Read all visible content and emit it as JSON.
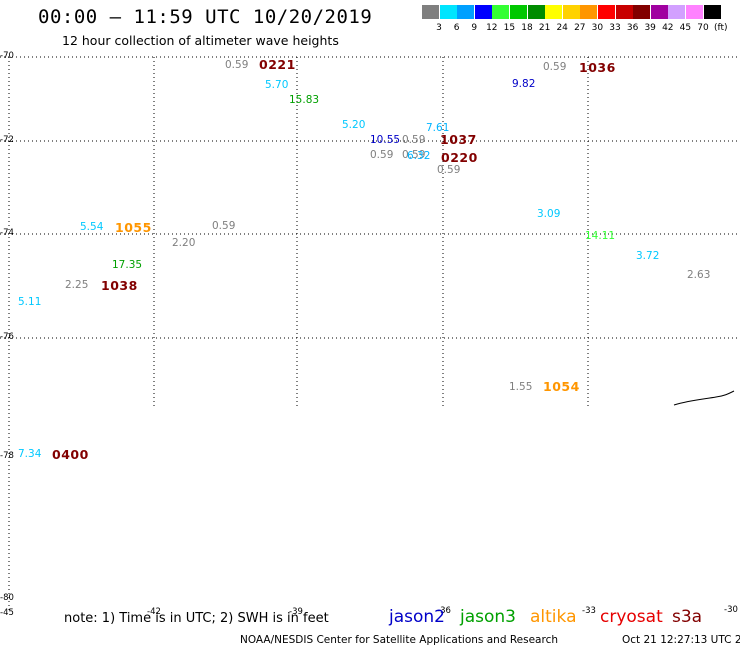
{
  "title": "00:00 – 11:59 UTC 10/20/2019",
  "subtitle": "12 hour collection of altimeter wave heights",
  "legend": {
    "unit_label": "(ft)",
    "bins": [
      {
        "label": "3",
        "color": "#7f7f7f"
      },
      {
        "label": "6",
        "color": "#00e5ff"
      },
      {
        "label": "9",
        "color": "#00a0ff"
      },
      {
        "label": "12",
        "color": "#0000ff"
      },
      {
        "label": "15",
        "color": "#33ff33"
      },
      {
        "label": "18",
        "color": "#00c800"
      },
      {
        "label": "21",
        "color": "#008c00"
      },
      {
        "label": "24",
        "color": "#ffff00"
      },
      {
        "label": "27",
        "color": "#ffd200"
      },
      {
        "label": "30",
        "color": "#ff9600"
      },
      {
        "label": "33",
        "color": "#ff0000"
      },
      {
        "label": "36",
        "color": "#c80000"
      },
      {
        "label": "39",
        "color": "#820000"
      },
      {
        "label": "42",
        "color": "#a000a0"
      },
      {
        "label": "45",
        "color": "#d2a0ff"
      },
      {
        "label": "70",
        "color": "#ff82ff"
      },
      {
        "label": "",
        "color": "#000000"
      }
    ]
  },
  "lat_ticks": [
    "-70",
    "-72",
    "-74",
    "-76",
    "-78",
    "-80"
  ],
  "lon_ticks": [
    "-45",
    "-42",
    "-39",
    "-36",
    "-33",
    "-30"
  ],
  "observations": [
    {
      "text": "0.59",
      "color": "#7f7f7f",
      "cls": "obs"
    },
    {
      "text": "0221",
      "color": "#820000",
      "cls": "big"
    },
    {
      "text": "5.70",
      "color": "#00c8ff",
      "cls": "obs"
    },
    {
      "text": "15.83",
      "color": "#00a000",
      "cls": "obs"
    },
    {
      "text": "5.20",
      "color": "#00c8ff",
      "cls": "obs"
    },
    {
      "text": "7.61",
      "color": "#00b4ff",
      "cls": "obs"
    },
    {
      "text": "10.55",
      "color": "#0000c8",
      "cls": "obs"
    },
    {
      "text": "0.59",
      "color": "#7f7f7f",
      "cls": "obs"
    },
    {
      "text": "1037",
      "color": "#820000",
      "cls": "big"
    },
    {
      "text": "0.59",
      "color": "#7f7f7f",
      "cls": "obs"
    },
    {
      "text": "0.59",
      "color": "#7f7f7f",
      "cls": "obs"
    },
    {
      "text": "6.32",
      "color": "#00b4ff",
      "cls": "obs"
    },
    {
      "text": "0220",
      "color": "#820000",
      "cls": "big"
    },
    {
      "text": "0.59",
      "color": "#7f7f7f",
      "cls": "obs"
    },
    {
      "text": "0.59",
      "color": "#7f7f7f",
      "cls": "obs"
    },
    {
      "text": "1036",
      "color": "#820000",
      "cls": "big"
    },
    {
      "text": "9.82",
      "color": "#0000c8",
      "cls": "obs"
    },
    {
      "text": "0.59",
      "color": "#7f7f7f",
      "cls": "obs"
    },
    {
      "text": "0.59",
      "color": "#7f7f7f",
      "cls": "obs"
    },
    {
      "text": "5.54",
      "color": "#00c8ff",
      "cls": "obs"
    },
    {
      "text": "1055",
      "color": "#ff9600",
      "cls": "big"
    },
    {
      "text": "2.20",
      "color": "#7f7f7f",
      "cls": "obs"
    },
    {
      "text": "17.35",
      "color": "#00a000",
      "cls": "obs"
    },
    {
      "text": "2.25",
      "color": "#7f7f7f",
      "cls": "obs"
    },
    {
      "text": "1038",
      "color": "#820000",
      "cls": "big"
    },
    {
      "text": "5.11",
      "color": "#00c8ff",
      "cls": "obs"
    },
    {
      "text": "3.09",
      "color": "#00c8ff",
      "cls": "obs"
    },
    {
      "text": "14.11",
      "color": "#33ff33",
      "cls": "obs"
    },
    {
      "text": "3.72",
      "color": "#00c8ff",
      "cls": "obs"
    },
    {
      "text": "2.63",
      "color": "#7f7f7f",
      "cls": "obs"
    },
    {
      "text": "1.55",
      "color": "#7f7f7f",
      "cls": "obs"
    },
    {
      "text": "1054",
      "color": "#ff9600",
      "cls": "big"
    },
    {
      "text": "7.34",
      "color": "#00c8ff",
      "cls": "obs"
    },
    {
      "text": "0400",
      "color": "#820000",
      "cls": "big"
    }
  ],
  "note": "note: 1) Time is in UTC; 2) SWH is in feet",
  "satellites": [
    {
      "name": "jason2",
      "color": "#0000c8"
    },
    {
      "name": "jason3",
      "color": "#00a000"
    },
    {
      "name": "altika",
      "color": "#ff9600"
    },
    {
      "name": "cryosat",
      "color": "#e60000"
    },
    {
      "name": "s3a",
      "color": "#820000"
    }
  ],
  "footer": "NOAA/NESDIS Center for Satellite Applications and Research",
  "timestamp": "Oct 21 12:27:13 UTC 2019"
}
